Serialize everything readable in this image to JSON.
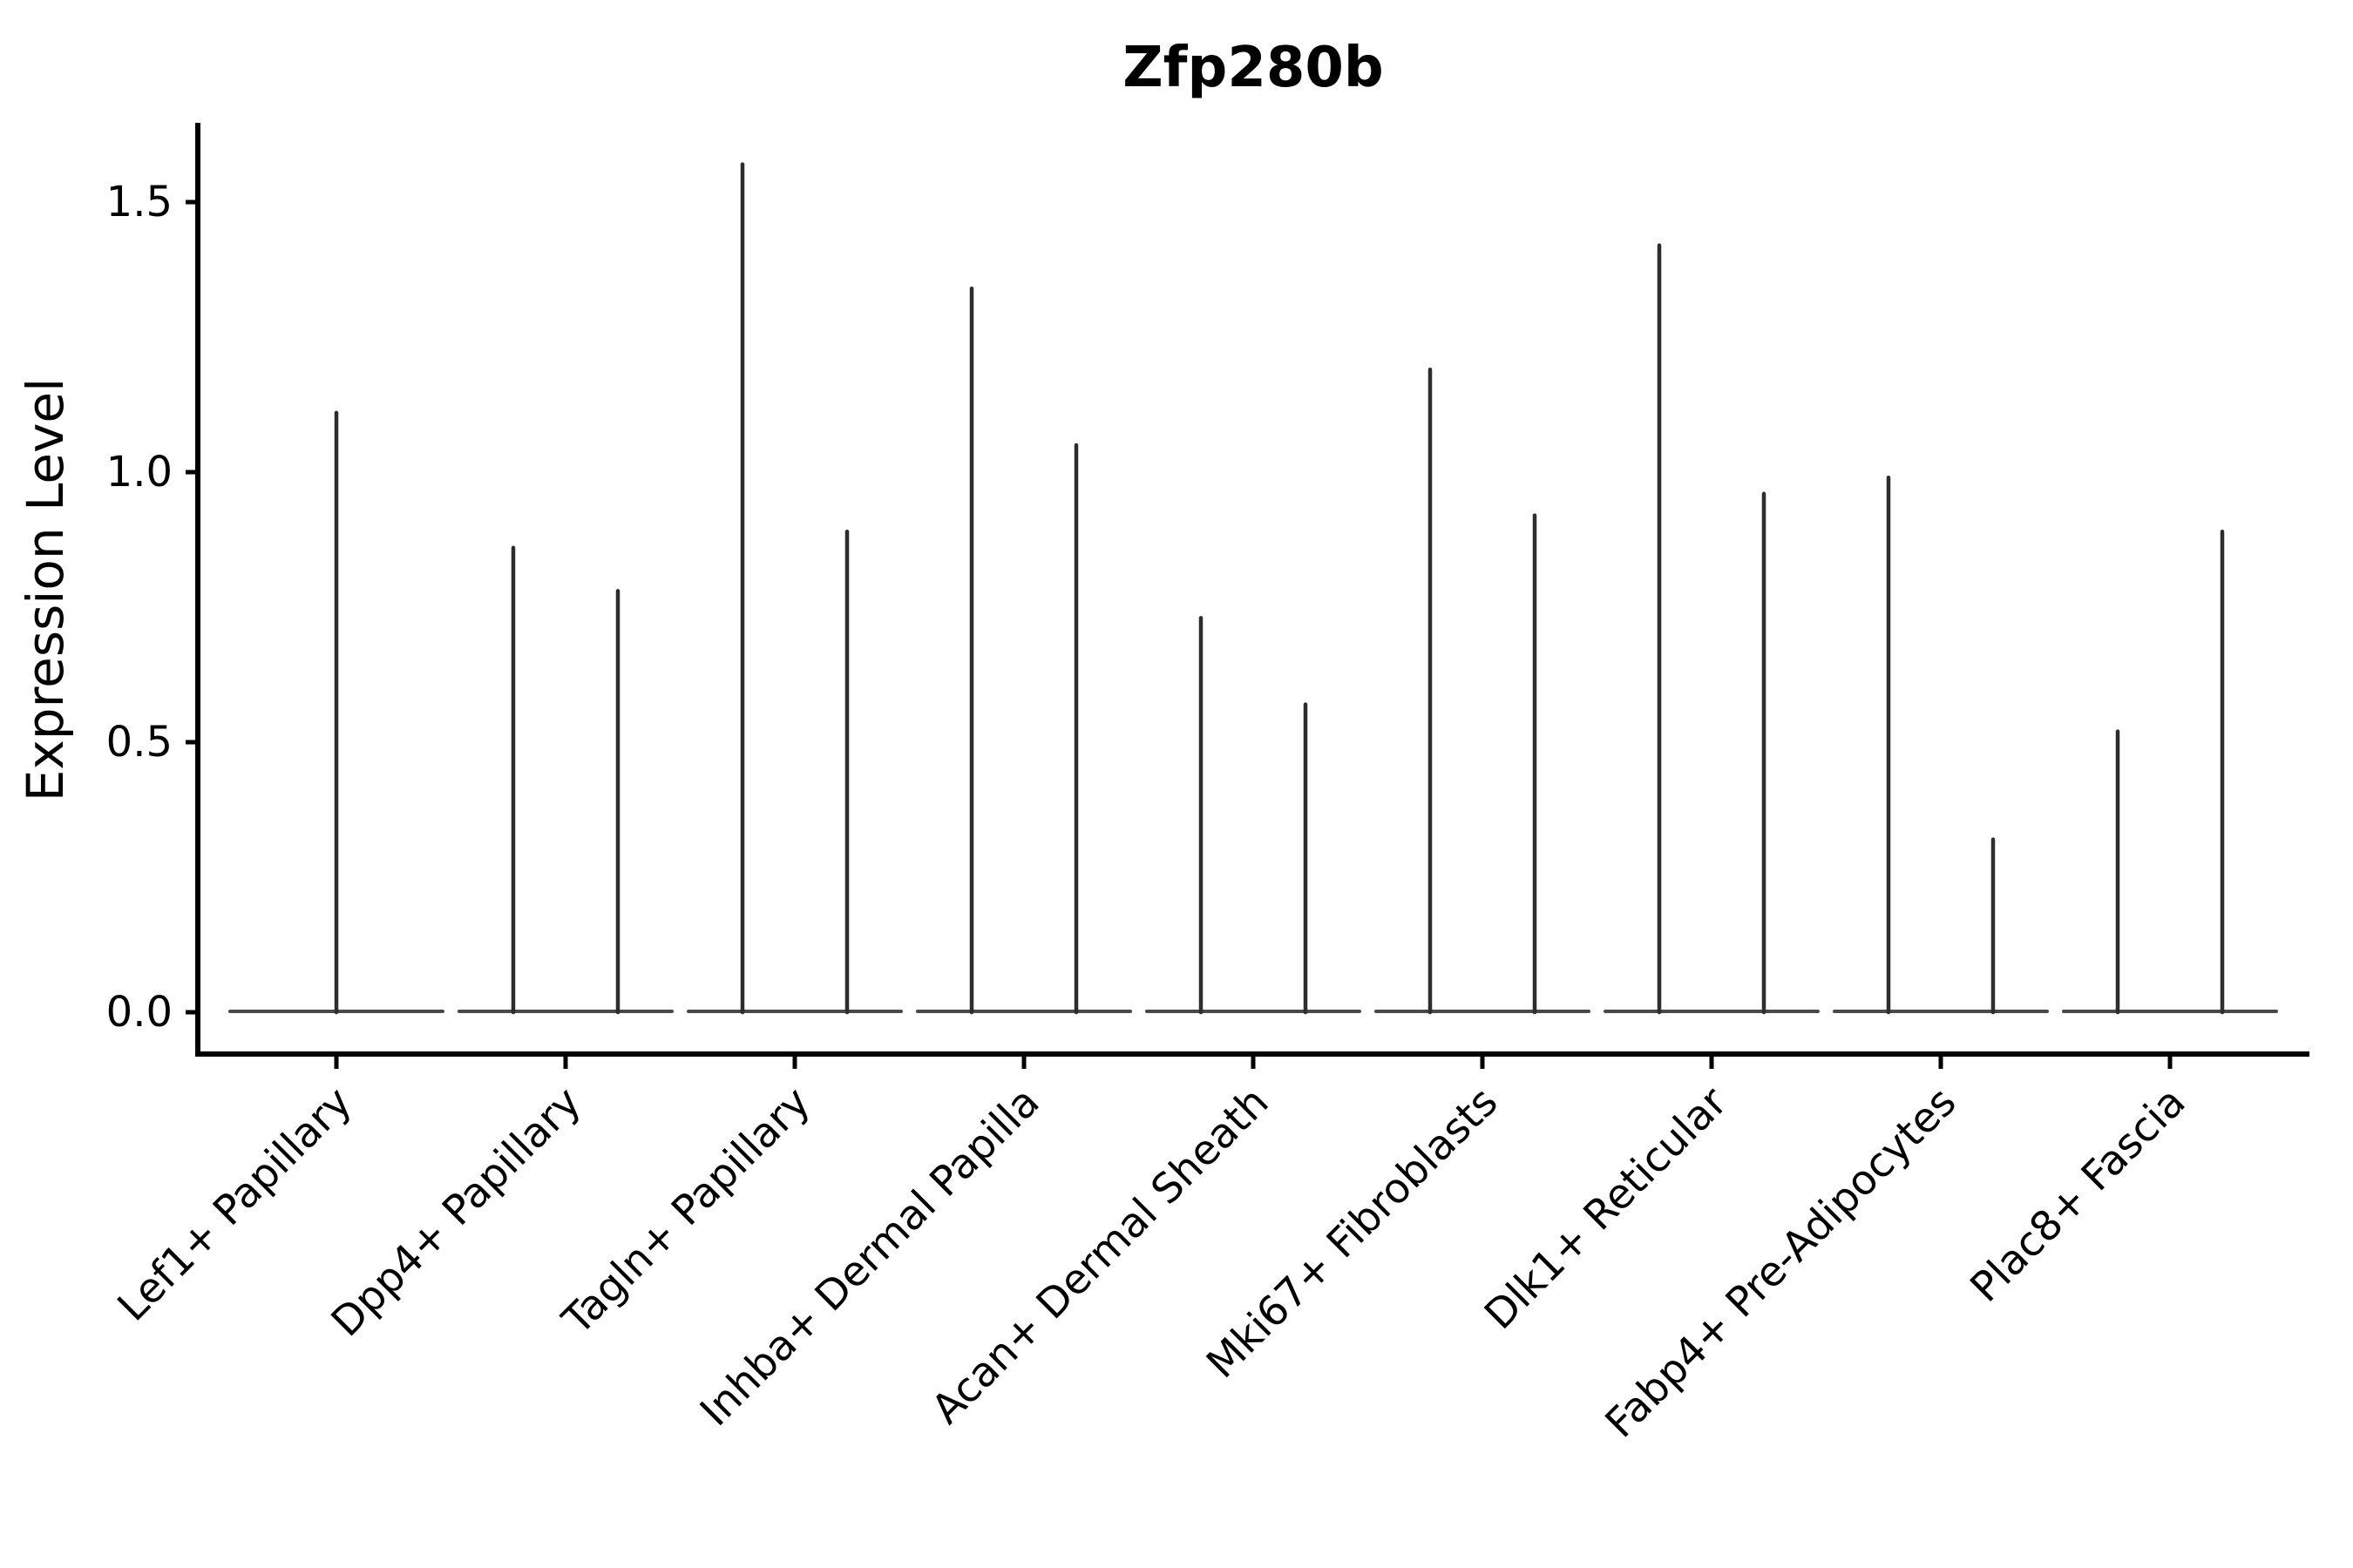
{
  "page": {
    "background_color": "#ffffff"
  },
  "chart_data": {
    "type": "violin",
    "title": "Zfp280b",
    "xlabel": "",
    "ylabel": "Expression Level",
    "ylim": [
      -0.08,
      1.65
    ],
    "grid": false,
    "legend": "none",
    "yticks": [
      {
        "label": "0.0",
        "value": 0.0
      },
      {
        "label": "0.5",
        "value": 0.5
      },
      {
        "label": "1.0",
        "value": 1.0
      },
      {
        "label": "1.5",
        "value": 1.5
      }
    ],
    "categories": [
      {
        "label": "Lef1+ Papillary",
        "violin_max_values": [
          1.11
        ]
      },
      {
        "label": "Dpp4+ Papillary",
        "violin_max_values": [
          0.86,
          0.78
        ]
      },
      {
        "label": "Tagln+ Papillary",
        "violin_max_values": [
          1.57,
          0.89
        ]
      },
      {
        "label": "Inhba+ Dermal Papilla",
        "violin_max_values": [
          1.34,
          1.05
        ]
      },
      {
        "label": "Acan+ Dermal Sheath",
        "violin_max_values": [
          0.73,
          0.57
        ]
      },
      {
        "label": "Mki67+ Fibroblasts",
        "violin_max_values": [
          1.19,
          0.92
        ]
      },
      {
        "label": "Dlk1+ Reticular",
        "violin_max_values": [
          1.42,
          0.96
        ]
      },
      {
        "label": "Fabp4+ Pre-Adipocytes",
        "violin_max_values": [
          0.99,
          0.32
        ]
      },
      {
        "label": "Plac8+ Fascia",
        "violin_max_values": [
          0.52,
          0.89
        ]
      }
    ],
    "violin_baseline_value": 0.0
  },
  "colors": {
    "violin_spike": "#2d2d2d",
    "violin_base": "#3a3a3a",
    "axis": "#000000",
    "text": "#000000"
  }
}
